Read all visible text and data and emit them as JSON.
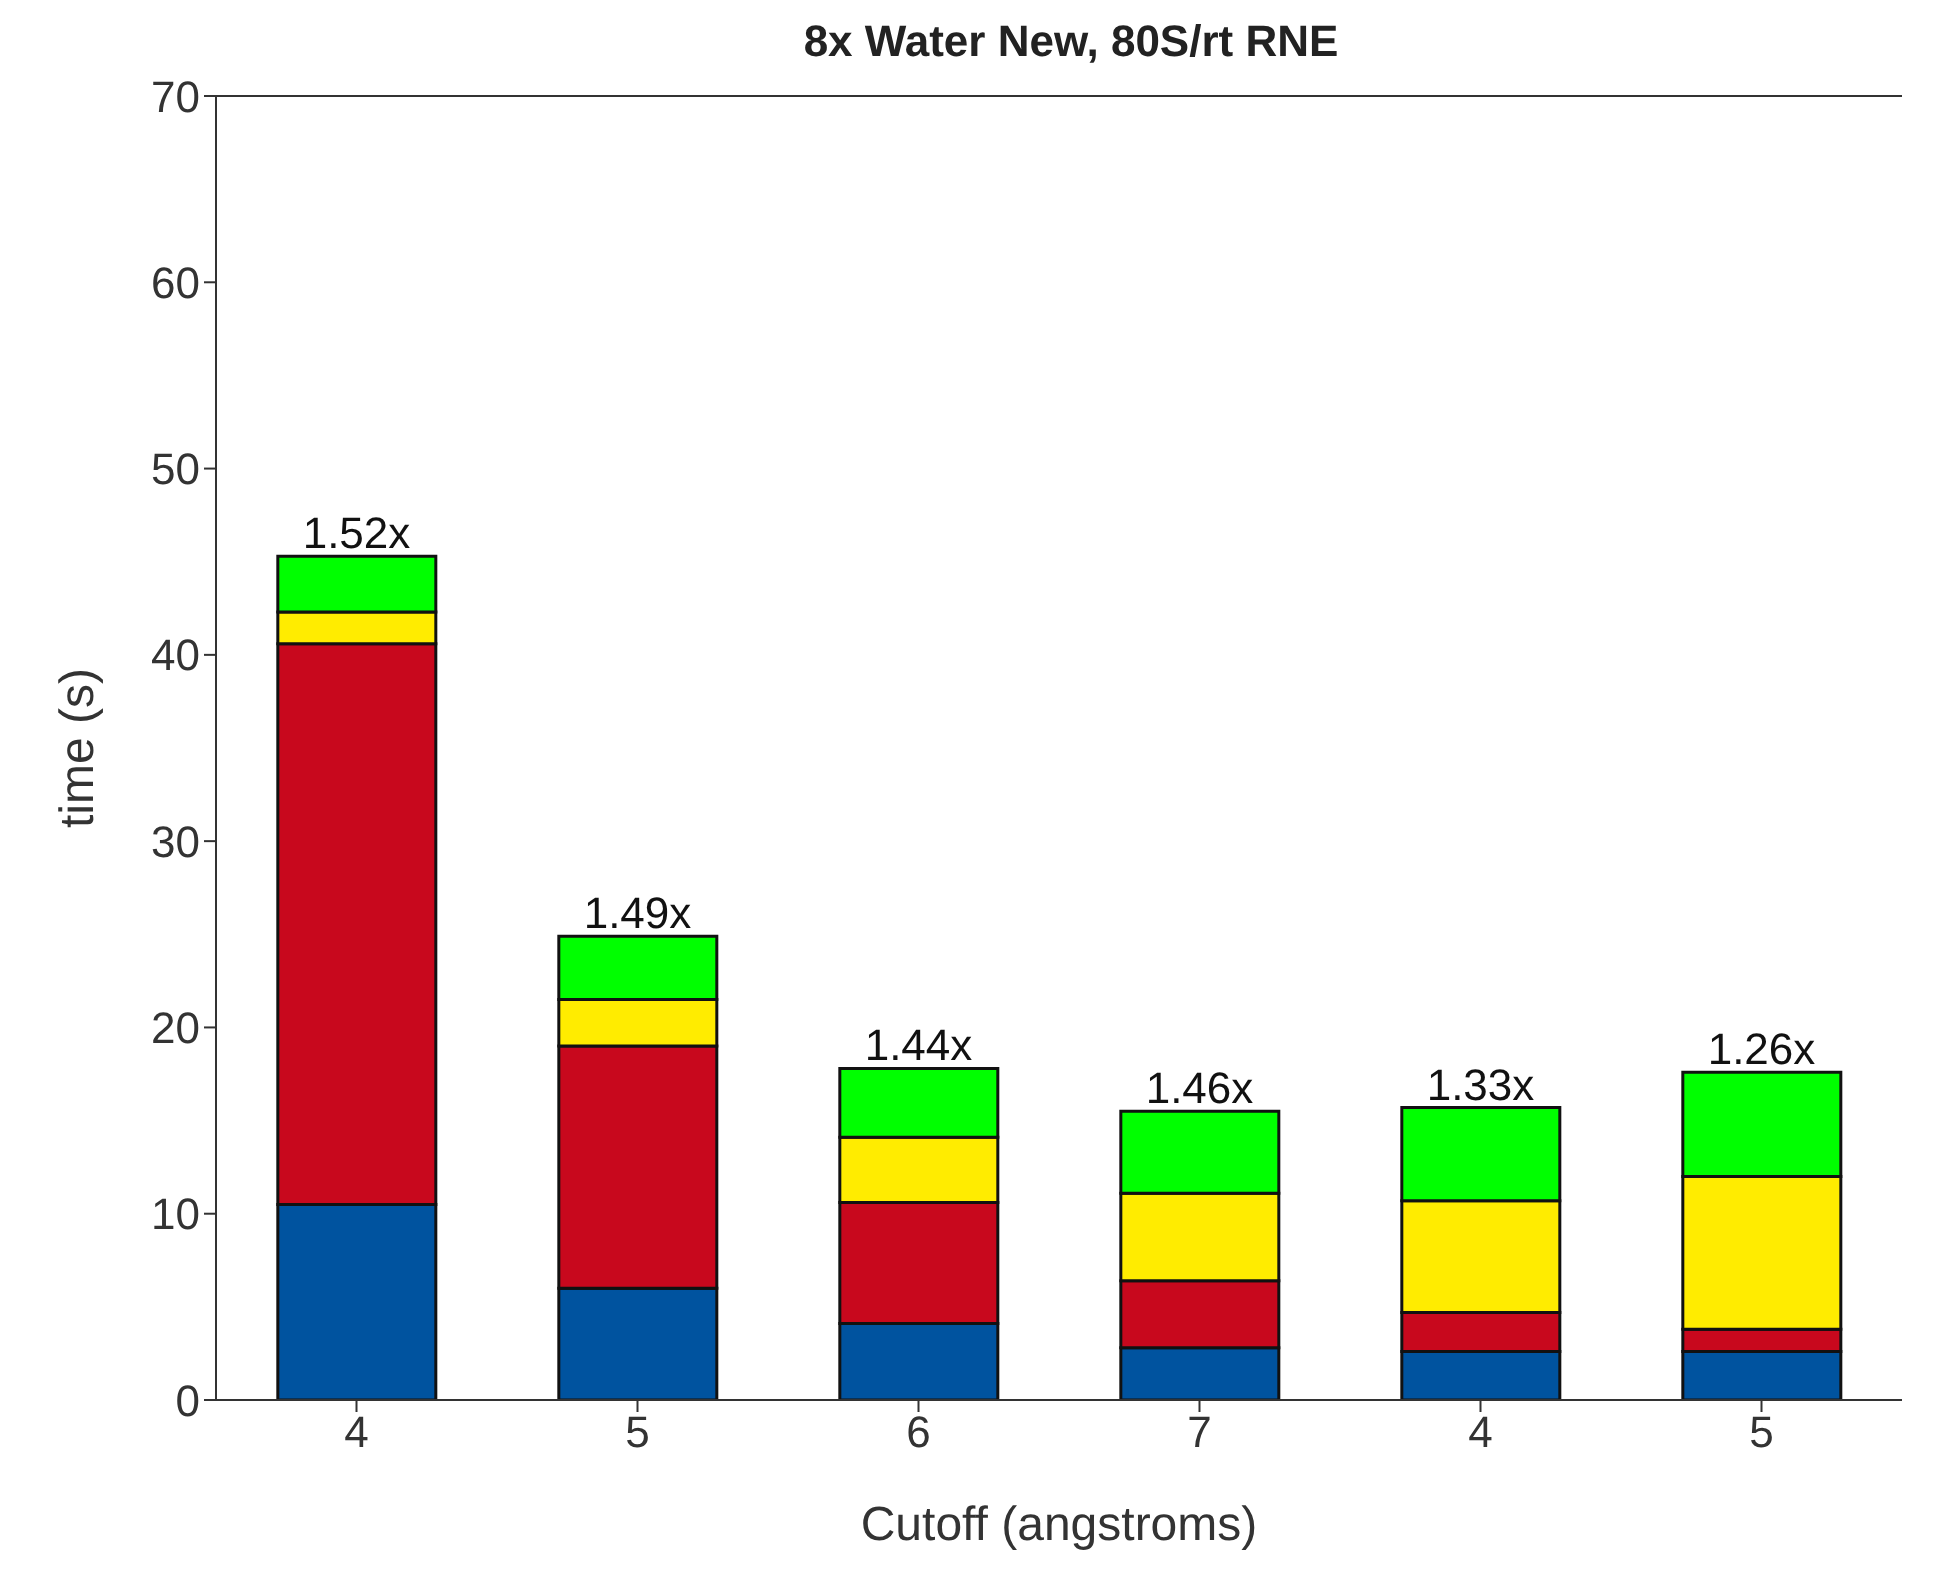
{
  "chart_data": {
    "type": "bar",
    "title": "8x Water New, 80S/rt RNE",
    "xlabel": "Cutoff (angstroms)",
    "ylabel": "time (s)",
    "categories": [
      "4",
      "5",
      "6",
      "7",
      "4",
      "5"
    ],
    "stacked": true,
    "series": [
      {
        "color": "#00539f",
        "values": [
          10.5,
          6.0,
          4.1,
          2.8,
          2.6,
          2.6
        ]
      },
      {
        "color": "#c8081d",
        "values": [
          30.1,
          13.0,
          6.5,
          3.6,
          2.1,
          1.2
        ]
      },
      {
        "color": "#ffec00",
        "values": [
          1.7,
          2.5,
          3.5,
          4.7,
          6.0,
          8.2
        ]
      },
      {
        "color": "#00ff00",
        "values": [
          3.0,
          3.4,
          3.7,
          4.4,
          5.0,
          5.6
        ]
      }
    ],
    "annotations": [
      "1.52x",
      "1.49x",
      "1.44x",
      "1.46x",
      "1.33x",
      "1.26x"
    ],
    "ylim": [
      0,
      70
    ],
    "yticks": [
      0,
      10,
      20,
      30,
      40,
      50,
      60,
      70
    ]
  }
}
